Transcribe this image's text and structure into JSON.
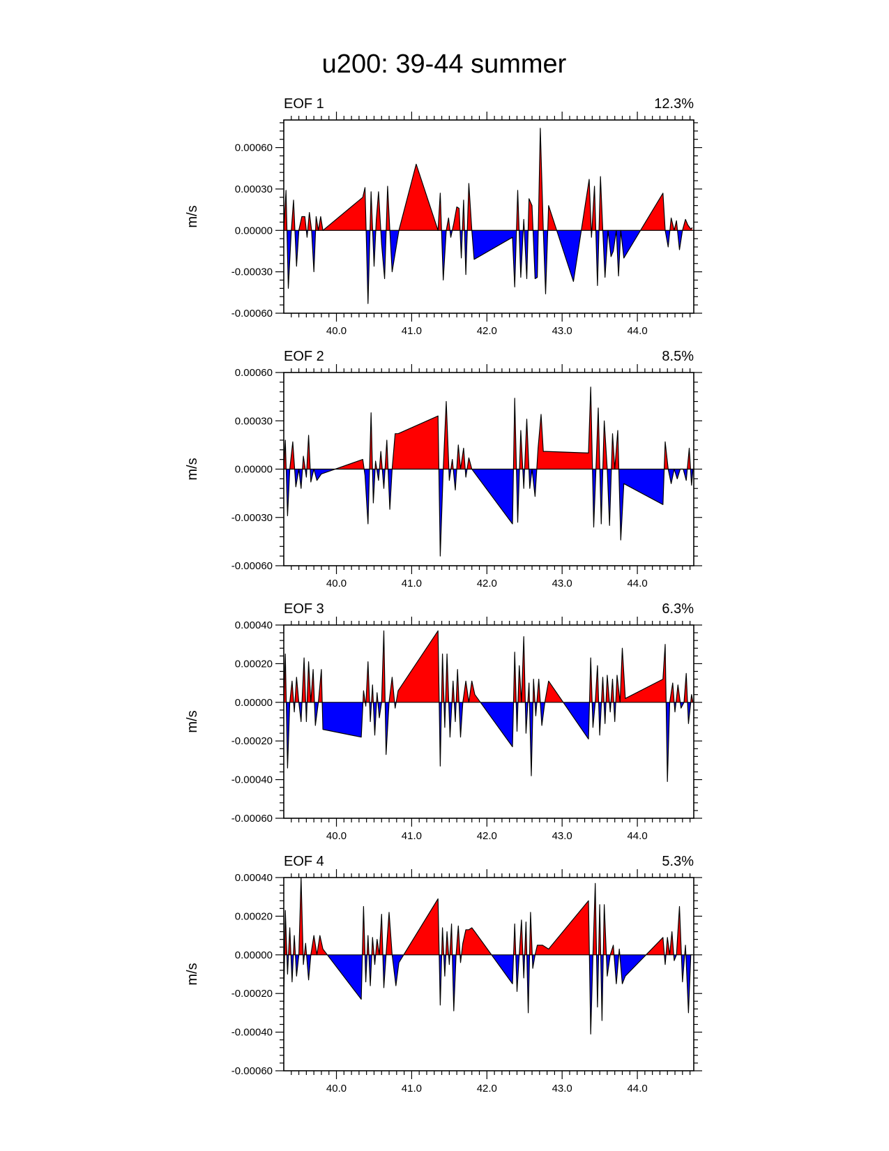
{
  "title": "u200: 39-44 summer",
  "colors": {
    "positive": "#ff0000",
    "negative": "#0000ff",
    "line": "#000000"
  },
  "chart_data": [
    {
      "type": "area",
      "name": "EOF 1",
      "percent": "12.3%",
      "ylabel": "m/s",
      "ylim": [
        -0.0006,
        0.0008
      ],
      "yticks": [
        -0.0006,
        -0.0003,
        0.0,
        0.0003,
        0.0006
      ],
      "ytick_labels": [
        "-0.00060",
        "-0.00030",
        "0.00000",
        "0.00030",
        "0.00060"
      ],
      "xlim": [
        39.3,
        44.75
      ],
      "xticks": [
        40.0,
        41.0,
        42.0,
        43.0,
        44.0
      ],
      "xtick_labels": [
        "40.0",
        "41.0",
        "42.0",
        "43.0",
        "44.0"
      ],
      "x": [
        39.3,
        39.33,
        39.36,
        39.4,
        39.43,
        39.47,
        39.5,
        39.54,
        39.58,
        39.61,
        39.64,
        39.67,
        39.7,
        39.73,
        39.76,
        39.79,
        39.82,
        40.35,
        40.38,
        40.42,
        40.46,
        40.5,
        40.53,
        40.56,
        40.6,
        40.64,
        40.68,
        40.71,
        40.74,
        40.83,
        41.06,
        41.35,
        41.38,
        41.42,
        41.46,
        41.49,
        41.52,
        41.56,
        41.6,
        41.63,
        41.66,
        41.69,
        41.72,
        41.76,
        41.8,
        41.83,
        42.34,
        42.37,
        42.41,
        42.45,
        42.49,
        42.53,
        42.56,
        42.6,
        42.64,
        42.67,
        42.71,
        42.75,
        42.78,
        42.82,
        43.15,
        43.36,
        43.39,
        43.43,
        43.47,
        43.51,
        43.54,
        43.57,
        43.61,
        43.65,
        43.68,
        43.72,
        43.75,
        43.78,
        43.82,
        44.34,
        44.37,
        44.41,
        44.45,
        44.49,
        44.52,
        44.56,
        44.6,
        44.64,
        44.67,
        44.71,
        44.73
      ],
      "values": [
        0.0,
        0.00029,
        -0.00042,
        0.0,
        0.00022,
        -0.00026,
        0.0,
        0.0001,
        0.0001,
        -5e-05,
        0.00013,
        0.0,
        -0.0003,
        0.0001,
        0.0,
        0.0001,
        0.0,
        0.00024,
        0.00031,
        -0.00053,
        0.00028,
        -0.00026,
        8e-05,
        0.00028,
        -0.0001,
        -0.00035,
        0.00032,
        0.0,
        -0.0003,
        0.0,
        0.00048,
        0.0,
        0.00027,
        -0.00036,
        0.0,
        9e-05,
        -5e-05,
        5e-05,
        0.00017,
        0.00016,
        -0.0002,
        0.00022,
        -0.00032,
        0.00034,
        0.0,
        -0.00021,
        -5e-05,
        -0.00041,
        0.00029,
        -0.00034,
        8e-05,
        -0.00035,
        0.00023,
        0.00018,
        -0.00035,
        -0.00034,
        0.00074,
        0.0,
        -0.00046,
        0.00018,
        -0.00037,
        0.00037,
        -5e-05,
        0.00032,
        -0.0004,
        0.00039,
        0.0,
        -0.00034,
        0.0,
        -0.00019,
        -0.00015,
        0.0,
        -0.00033,
        0.0,
        -0.0002,
        0.00027,
        0.0,
        -0.00012,
        9e-05,
        0.0,
        7e-05,
        -0.00014,
        0.0,
        8e-05,
        4e-05,
        1e-05,
        2e-05
      ]
    },
    {
      "type": "area",
      "name": "EOF 2",
      "percent": "8.5%",
      "ylabel": "m/s",
      "ylim": [
        -0.0006,
        0.0006
      ],
      "yticks": [
        -0.0006,
        -0.0003,
        0.0,
        0.0003,
        0.0006
      ],
      "ytick_labels": [
        "-0.00060",
        "-0.00030",
        "0.00000",
        "0.00030",
        "0.00060"
      ],
      "xlim": [
        39.3,
        44.75
      ],
      "xticks": [
        40.0,
        41.0,
        42.0,
        43.0,
        44.0
      ],
      "xtick_labels": [
        "40.0",
        "41.0",
        "42.0",
        "43.0",
        "44.0"
      ],
      "x": [
        39.3,
        39.32,
        39.35,
        39.38,
        39.42,
        39.46,
        39.5,
        39.53,
        39.56,
        39.6,
        39.63,
        39.66,
        39.7,
        39.74,
        39.8,
        40.35,
        40.38,
        40.42,
        40.46,
        40.49,
        40.52,
        40.56,
        40.59,
        40.63,
        40.67,
        40.71,
        40.74,
        40.78,
        40.82,
        41.35,
        41.38,
        41.42,
        41.46,
        41.5,
        41.54,
        41.58,
        41.62,
        41.65,
        41.69,
        41.72,
        41.76,
        41.8,
        42.34,
        42.37,
        42.41,
        42.45,
        42.49,
        42.53,
        42.57,
        42.6,
        42.64,
        42.68,
        42.72,
        42.75,
        42.78,
        43.35,
        43.38,
        43.42,
        43.45,
        43.48,
        43.52,
        43.56,
        43.6,
        43.63,
        43.67,
        43.7,
        43.74,
        43.78,
        43.82,
        44.34,
        44.37,
        44.41,
        44.45,
        44.49,
        44.53,
        44.57,
        44.61,
        44.65,
        44.69,
        44.72,
        44.74
      ],
      "values": [
        0.0,
        0.00018,
        -0.00029,
        0.0,
        0.00017,
        -0.00011,
        0.0,
        -0.00012,
        8e-05,
        -5e-05,
        0.00021,
        -8e-05,
        0.0,
        -7e-05,
        -3e-05,
        6e-05,
        -4e-05,
        -0.00034,
        0.00035,
        -0.00021,
        5e-05,
        -7e-05,
        0.00011,
        -0.00012,
        0.00018,
        -0.00025,
        0.0,
        0.00022,
        0.00022,
        0.00033,
        -0.00054,
        0.0,
        0.00042,
        -7e-05,
        6e-05,
        -0.00013,
        0.00015,
        0.0,
        0.00013,
        -5e-05,
        7e-05,
        0.0,
        -0.00034,
        0.00044,
        -0.00033,
        0.00024,
        -0.00012,
        0.00031,
        -0.00012,
        0.0,
        -0.00017,
        0.00013,
        0.00034,
        0.00011,
        0.00011,
        0.0001,
        0.00051,
        -0.00036,
        0.0,
        0.00038,
        -0.00034,
        0.0003,
        0.0,
        -0.00035,
        0.00022,
        0.0,
        0.00024,
        -0.00044,
        -9e-05,
        -0.00022,
        0.00017,
        0.0,
        -9e-05,
        0.0,
        -6e-05,
        0.0,
        0.0,
        -7e-05,
        0.00013,
        -0.0001,
        0.0
      ]
    },
    {
      "type": "area",
      "name": "EOF 3",
      "percent": "6.3%",
      "ylabel": "m/s",
      "ylim": [
        -0.0006,
        0.0004
      ],
      "yticks": [
        -0.0006,
        -0.0004,
        -0.0002,
        0.0,
        0.0002,
        0.0004
      ],
      "ytick_labels": [
        "-0.00060",
        "-0.00040",
        "-0.00020",
        "0.00000",
        "0.00020",
        "0.00040"
      ],
      "xlim": [
        39.3,
        44.75
      ],
      "xticks": [
        40.0,
        41.0,
        42.0,
        43.0,
        44.0
      ],
      "xtick_labels": [
        "40.0",
        "41.0",
        "42.0",
        "43.0",
        "44.0"
      ],
      "x": [
        39.3,
        39.32,
        39.35,
        39.38,
        39.41,
        39.44,
        39.47,
        39.5,
        39.53,
        39.57,
        39.6,
        39.63,
        39.66,
        39.69,
        39.72,
        39.76,
        39.8,
        39.82,
        40.33,
        40.36,
        40.39,
        40.42,
        40.45,
        40.48,
        40.51,
        40.54,
        40.57,
        40.6,
        40.63,
        40.66,
        40.7,
        40.74,
        40.78,
        40.82,
        41.35,
        41.38,
        41.41,
        41.44,
        41.47,
        41.51,
        41.55,
        41.58,
        41.61,
        41.65,
        41.68,
        41.72,
        41.76,
        41.8,
        41.84,
        42.34,
        42.37,
        42.4,
        42.43,
        42.46,
        42.49,
        42.52,
        42.56,
        42.59,
        42.62,
        42.65,
        42.69,
        42.73,
        42.77,
        42.82,
        43.35,
        43.38,
        43.41,
        43.44,
        43.47,
        43.5,
        43.54,
        43.57,
        43.6,
        43.64,
        43.67,
        43.7,
        43.73,
        43.77,
        43.8,
        43.84,
        44.34,
        44.37,
        44.4,
        44.43,
        44.47,
        44.5,
        44.54,
        44.58,
        44.62,
        44.65,
        44.68,
        44.72,
        44.74
      ],
      "values": [
        0.0,
        0.00025,
        -0.00034,
        0.0,
        0.00011,
        -5e-05,
        0.00013,
        0.0,
        -0.0001,
        0.00023,
        -0.0001,
        0.00021,
        0.0,
        0.00017,
        -0.00012,
        0.0,
        0.00017,
        -0.00014,
        -0.00018,
        6e-05,
        -2e-05,
        0.00021,
        -0.0001,
        9e-05,
        -0.00017,
        5e-05,
        -8e-05,
        0.0,
        0.00037,
        -0.00027,
        0.0,
        0.00013,
        -3e-05,
        6e-05,
        0.00037,
        -0.00033,
        0.00025,
        -0.00013,
        0.00025,
        -0.00018,
        0.00011,
        -0.0001,
        0.00017,
        -0.00018,
        0.0,
        0.00011,
        0.0,
        0.00011,
        4e-05,
        -0.00023,
        0.00026,
        -0.00015,
        0.00019,
        0.0,
        0.00034,
        -0.00016,
        0.0001,
        -0.00038,
        0.00012,
        -7e-05,
        0.00012,
        -0.00012,
        0.0,
        0.00011,
        -0.00019,
        0.00023,
        -0.00013,
        0.0,
        0.00019,
        -0.00017,
        0.00013,
        -0.00011,
        0.00014,
        -5e-05,
        0.00012,
        -0.0001,
        0.00014,
        0.0,
        0.00028,
        2e-05,
        0.00012,
        0.0003,
        -0.00041,
        0.0,
        0.0001,
        -5e-05,
        9e-05,
        -3e-05,
        0.0,
        0.00015,
        -0.00011,
        4e-05,
        0.0
      ]
    },
    {
      "type": "area",
      "name": "EOF 4",
      "percent": "5.3%",
      "ylabel": "m/s",
      "ylim": [
        -0.0006,
        0.0004
      ],
      "yticks": [
        -0.0006,
        -0.0004,
        -0.0002,
        0.0,
        0.0002,
        0.0004
      ],
      "ytick_labels": [
        "-0.00060",
        "-0.00040",
        "-0.00020",
        "0.00000",
        "0.00020",
        "0.00040"
      ],
      "xlim": [
        39.3,
        44.75
      ],
      "xticks": [
        40.0,
        41.0,
        42.0,
        43.0,
        44.0
      ],
      "xtick_labels": [
        "40.0",
        "41.0",
        "42.0",
        "43.0",
        "44.0"
      ],
      "x": [
        39.3,
        39.32,
        39.35,
        39.38,
        39.41,
        39.44,
        39.47,
        39.5,
        39.53,
        39.56,
        39.59,
        39.63,
        39.66,
        39.7,
        39.74,
        39.78,
        39.82,
        40.33,
        40.36,
        40.39,
        40.42,
        40.45,
        40.48,
        40.51,
        40.54,
        40.57,
        40.6,
        40.63,
        40.66,
        40.7,
        40.74,
        40.79,
        40.83,
        41.35,
        41.38,
        41.41,
        41.44,
        41.47,
        41.5,
        41.53,
        41.56,
        41.59,
        41.62,
        41.65,
        41.68,
        41.72,
        41.76,
        41.8,
        41.84,
        42.34,
        42.37,
        42.4,
        42.43,
        42.46,
        42.49,
        42.52,
        42.55,
        42.58,
        42.61,
        42.64,
        42.67,
        42.7,
        42.74,
        42.78,
        42.82,
        43.35,
        43.38,
        43.41,
        43.44,
        43.47,
        43.5,
        43.53,
        43.56,
        43.6,
        43.64,
        43.68,
        43.72,
        43.76,
        43.8,
        43.84,
        44.34,
        44.37,
        44.4,
        44.43,
        44.46,
        44.49,
        44.52,
        44.56,
        44.6,
        44.64,
        44.68,
        44.71,
        44.73
      ],
      "values": [
        -0.00026,
        0.00023,
        -0.0001,
        0.00014,
        -0.00014,
        0.0001,
        -0.00011,
        0.0,
        0.0004,
        -5e-05,
        6e-05,
        -0.00013,
        0.0,
        0.0001,
        0.0,
        0.0001,
        3e-05,
        -0.00023,
        0.00025,
        -0.00014,
        0.0001,
        -0.00016,
        9e-05,
        -5e-05,
        8e-05,
        0.0,
        0.00021,
        -0.00017,
        0.0,
        0.00022,
        0.0,
        -0.00016,
        -4e-05,
        0.00029,
        -0.00026,
        0.00014,
        -0.00011,
        0.00012,
        -5e-05,
        0.00016,
        -0.00029,
        0.0,
        0.00015,
        -4e-05,
        6e-05,
        0.00013,
        0.00013,
        0.00014,
        0.00012,
        -0.00015,
        0.00016,
        -0.00019,
        0.0,
        0.00018,
        -0.00012,
        0.00017,
        -0.0003,
        0.00022,
        -7e-05,
        0.0,
        5e-05,
        5e-05,
        5e-05,
        4e-05,
        3e-05,
        0.00028,
        -0.00041,
        0.0,
        0.00037,
        -0.00027,
        0.00026,
        -0.00034,
        0.00026,
        -0.00011,
        0.0,
        5e-05,
        -0.00015,
        3e-05,
        -0.00015,
        -0.00011,
        9e-05,
        -5e-05,
        9e-05,
        0.0,
        0.00012,
        -3e-05,
        0.0,
        0.00025,
        -0.00014,
        5e-05,
        -0.0003,
        0.0,
        0.0
      ]
    }
  ]
}
